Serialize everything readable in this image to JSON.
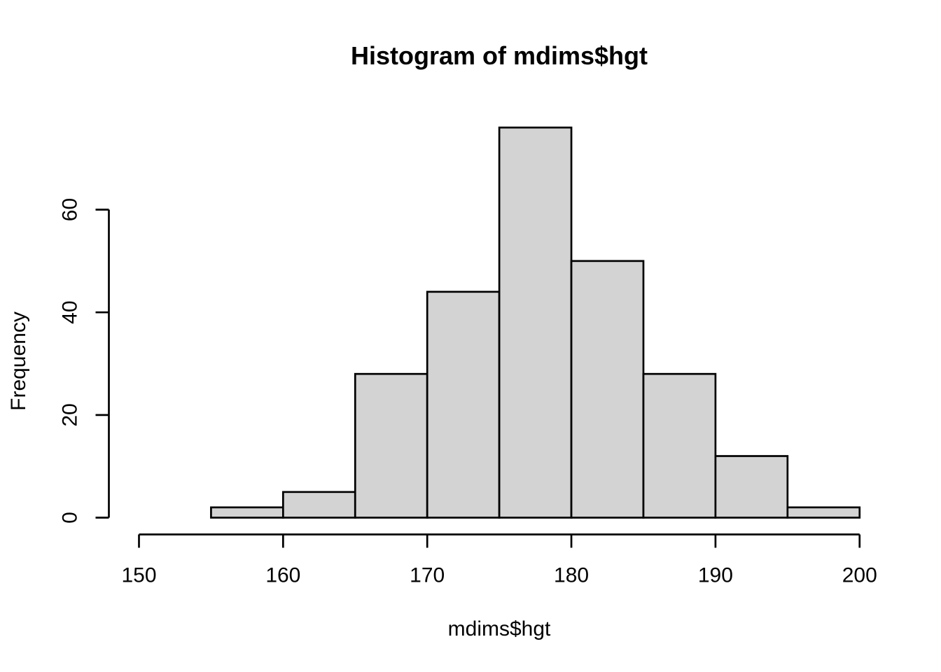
{
  "chart_data": {
    "type": "bar",
    "subtype": "histogram",
    "title": "Histogram of mdims$hgt",
    "xlabel": "mdims$hgt",
    "ylabel": "Frequency",
    "bin_edges": [
      155,
      160,
      165,
      170,
      175,
      180,
      185,
      190,
      195,
      200
    ],
    "counts": [
      2,
      5,
      28,
      44,
      76,
      50,
      28,
      12,
      2
    ],
    "x_ticks": [
      150,
      160,
      170,
      180,
      190,
      200
    ],
    "y_ticks": [
      0,
      20,
      40,
      60
    ],
    "xlim": [
      150,
      200
    ],
    "ylim": [
      0,
      76
    ],
    "grid": false,
    "legend": false,
    "colors": {
      "bar_fill": "#d3d3d3",
      "bar_stroke": "#000000",
      "axis": "#000000",
      "text": "#000000",
      "background": "#ffffff"
    }
  }
}
